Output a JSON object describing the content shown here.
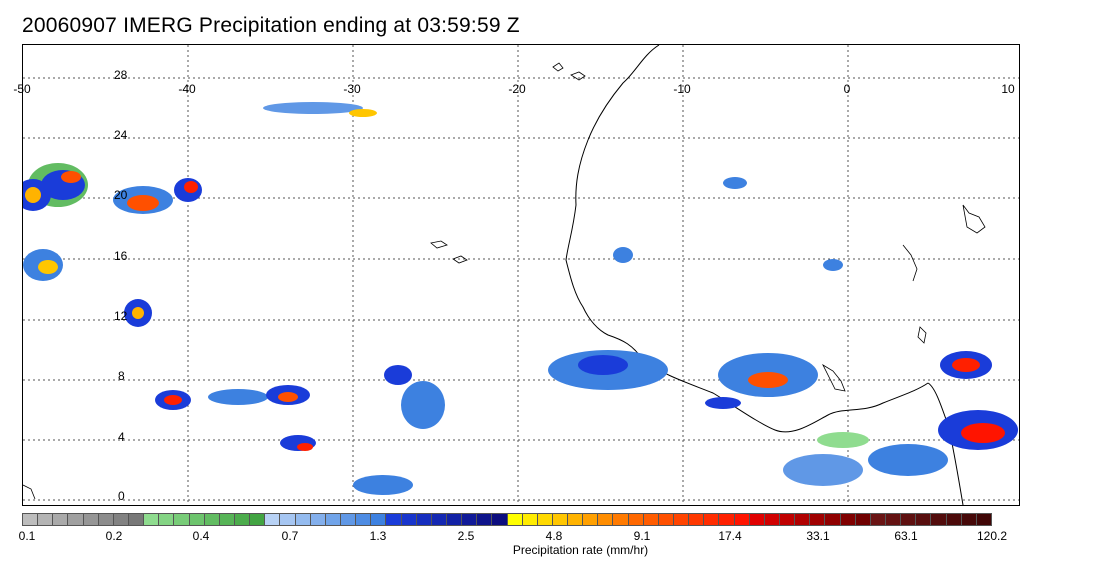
{
  "title": "20060907 IMERG Precipitation ending at 03:59:59 Z",
  "map": {
    "x_ticks": [
      "-50",
      "-40",
      "-30",
      "-20",
      "-10",
      "0",
      "10"
    ],
    "y_ticks": [
      "28",
      "24",
      "20",
      "16",
      "12",
      "8",
      "4",
      "0"
    ],
    "lon_range": [
      -50,
      10
    ],
    "lat_range": [
      -0.5,
      30
    ],
    "grid": true
  },
  "colorbar": {
    "label": "Precipitation rate (mm/hr)",
    "tick_labels": [
      "0.1",
      "0.2",
      "0.4",
      "0.7",
      "1.3",
      "2.5",
      "4.8",
      "9.1",
      "17.4",
      "33.1",
      "63.1",
      "120.2"
    ],
    "colors": [
      "#bdbdbd",
      "#b4b4b4",
      "#aaaaaa",
      "#a0a0a0",
      "#969696",
      "#8c8c8c",
      "#828282",
      "#787878",
      "#8fdc8f",
      "#84d484",
      "#78cc78",
      "#6dc46d",
      "#62bc62",
      "#57b457",
      "#4cac4c",
      "#42a442",
      "#b8d2f5",
      "#a6c6f2",
      "#94bbef",
      "#83afec",
      "#71a4e9",
      "#6098e6",
      "#4e8ce3",
      "#3d81e0",
      "#1a3cd9",
      "#1835cc",
      "#162ebf",
      "#1428b2",
      "#1221a5",
      "#101a98",
      "#0e148b",
      "#0c0d7e",
      "#ffff00",
      "#ffec00",
      "#ffd900",
      "#ffc600",
      "#ffb300",
      "#ffa000",
      "#ff8d00",
      "#ff7a00",
      "#ff6800",
      "#ff5c00",
      "#ff5000",
      "#ff4400",
      "#ff3800",
      "#ff2c00",
      "#ff2000",
      "#ff1400",
      "#e00000",
      "#d00000",
      "#c00000",
      "#b00000",
      "#a00000",
      "#900000",
      "#800000",
      "#700000",
      "#6a1414",
      "#641212",
      "#5e1010",
      "#580e0e",
      "#520c0c",
      "#4c0a0a",
      "#460808",
      "#400606"
    ]
  }
}
